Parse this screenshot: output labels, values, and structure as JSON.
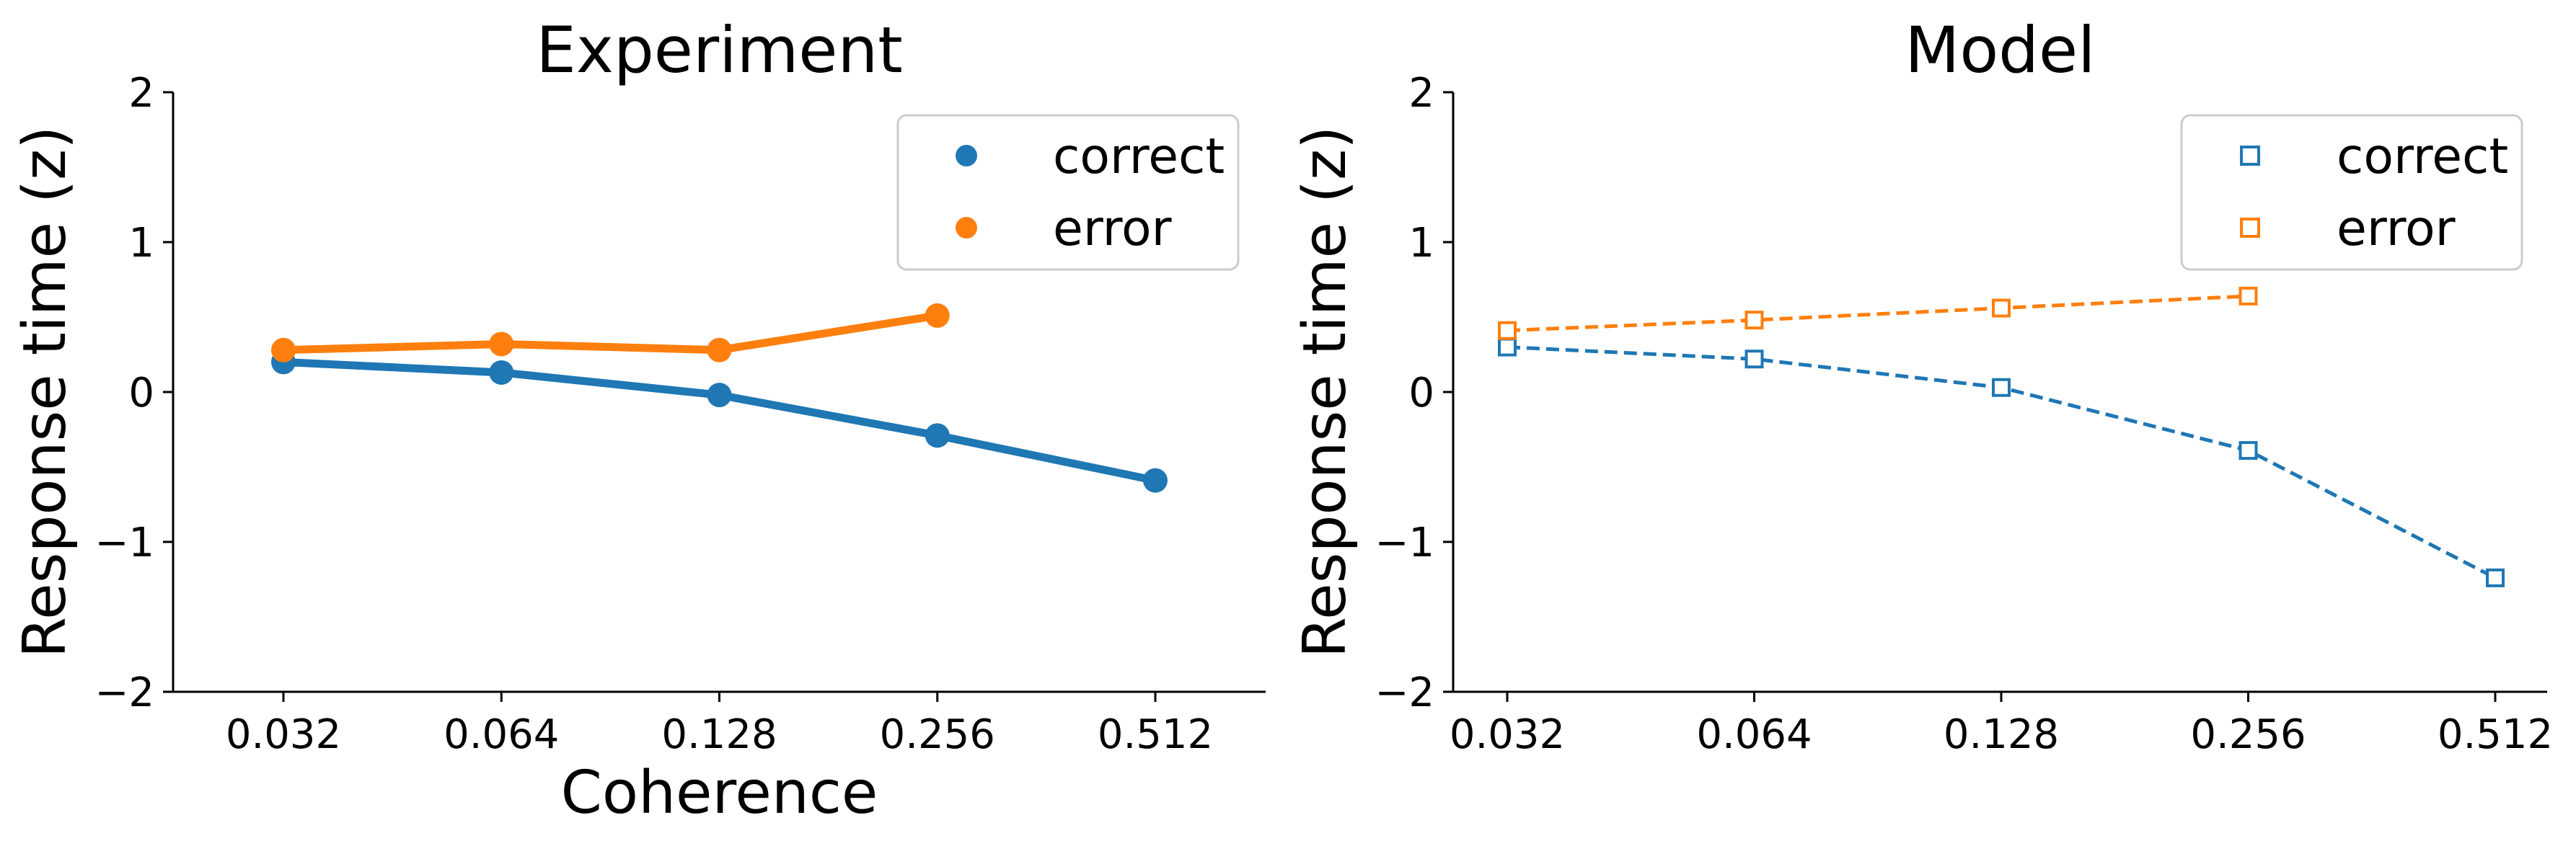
{
  "chart_data": [
    {
      "type": "line",
      "title": "Experiment",
      "xlabel": "Coherence",
      "ylabel": "Response time (z)",
      "x_scale": "log2",
      "categories": [
        "0.032",
        "0.064",
        "0.128",
        "0.256",
        "0.512"
      ],
      "ylim": [
        -2,
        2
      ],
      "yticks": [
        "−2",
        "−1",
        "0",
        "1",
        "2"
      ],
      "legend_position": "top-right",
      "series": [
        {
          "name": "correct",
          "color": "#1f77b4",
          "marker": "filled-circle",
          "line": "solid",
          "values": [
            0.2,
            0.13,
            -0.02,
            -0.29,
            -0.59
          ]
        },
        {
          "name": "error",
          "color": "#ff7f0e",
          "marker": "filled-circle",
          "line": "solid",
          "values": [
            0.28,
            0.32,
            0.28,
            0.51,
            null
          ]
        }
      ]
    },
    {
      "type": "line",
      "title": "Model",
      "xlabel": "",
      "ylabel": "Response time (z)",
      "x_scale": "log2",
      "categories": [
        "0.032",
        "0.064",
        "0.128",
        "0.256",
        "0.512"
      ],
      "ylim": [
        -2,
        2
      ],
      "yticks": [
        "−2",
        "−1",
        "0",
        "1",
        "2"
      ],
      "legend_position": "top-right",
      "series": [
        {
          "name": "correct",
          "color": "#1f77b4",
          "marker": "open-square",
          "line": "dashed",
          "values": [
            0.3,
            0.22,
            0.03,
            -0.39,
            -1.24
          ]
        },
        {
          "name": "error",
          "color": "#ff7f0e",
          "marker": "open-square",
          "line": "dashed",
          "values": [
            0.41,
            0.48,
            0.56,
            0.64,
            null
          ]
        }
      ]
    }
  ]
}
